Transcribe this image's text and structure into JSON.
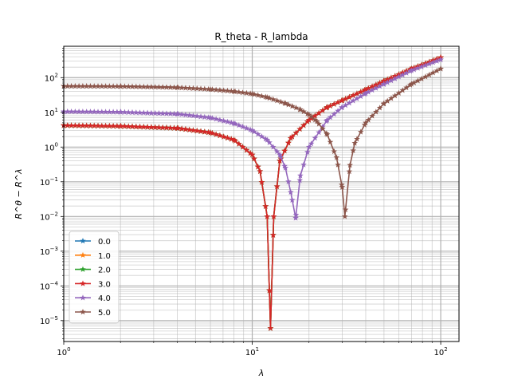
{
  "chart_data": {
    "type": "line",
    "title": "R_theta - R_lambda",
    "xlabel": "λ",
    "ylabel": "R^θ − R^λ",
    "xscale": "log",
    "yscale": "log",
    "xlim": [
      1,
      125
    ],
    "ylim": [
      2.5e-06,
      800
    ],
    "x_ticks": [
      {
        "value": 1,
        "base": "10",
        "exp": "0"
      },
      {
        "value": 10,
        "base": "10",
        "exp": "1"
      },
      {
        "value": 100,
        "base": "10",
        "exp": "2"
      }
    ],
    "y_ticks": [
      {
        "value": 1e-05,
        "base": "10",
        "exp": "−5"
      },
      {
        "value": 0.0001,
        "base": "10",
        "exp": "−4"
      },
      {
        "value": 0.001,
        "base": "10",
        "exp": "−3"
      },
      {
        "value": 0.01,
        "base": "10",
        "exp": "−2"
      },
      {
        "value": 0.1,
        "base": "10",
        "exp": "−1"
      },
      {
        "value": 1,
        "base": "10",
        "exp": "0"
      },
      {
        "value": 10,
        "base": "10",
        "exp": "1"
      },
      {
        "value": 100,
        "base": "10",
        "exp": "2"
      }
    ],
    "grid": true,
    "legend_position": "lower-left",
    "series": [
      {
        "name": "0.0",
        "color": "#1f77b4",
        "x": [
          1,
          2,
          4,
          6,
          8,
          10,
          11,
          12,
          12.5,
          13,
          14,
          16,
          20,
          25,
          30,
          40,
          50,
          70,
          100
        ],
        "y": [
          4.2,
          4.0,
          3.5,
          2.6,
          1.6,
          0.6,
          0.2,
          0.01,
          6e-06,
          0.01,
          0.4,
          1.8,
          6,
          14,
          22,
          45,
          80,
          180,
          380
        ]
      },
      {
        "name": "1.0",
        "color": "#ff7f0e",
        "x": [
          1,
          2,
          4,
          6,
          8,
          10,
          11,
          12,
          12.5,
          13,
          14,
          16,
          20,
          25,
          30,
          40,
          50,
          70,
          100
        ],
        "y": [
          4.2,
          4.0,
          3.5,
          2.6,
          1.6,
          0.6,
          0.2,
          0.01,
          6e-06,
          0.01,
          0.4,
          1.8,
          6,
          14,
          22,
          45,
          80,
          180,
          380
        ]
      },
      {
        "name": "2.0",
        "color": "#2ca02c",
        "x": [
          1,
          2,
          4,
          6,
          8,
          10,
          11,
          12,
          12.5,
          13,
          14,
          16,
          20,
          25,
          30,
          40,
          50,
          70,
          100
        ],
        "y": [
          4.2,
          4.0,
          3.5,
          2.6,
          1.6,
          0.6,
          0.2,
          0.01,
          6e-06,
          0.01,
          0.4,
          1.8,
          6,
          14,
          22,
          45,
          80,
          180,
          380
        ]
      },
      {
        "name": "3.0",
        "color": "#d62728",
        "x": [
          1,
          2,
          4,
          6,
          8,
          10,
          11,
          12,
          12.5,
          13,
          14,
          16,
          20,
          25,
          30,
          40,
          50,
          70,
          100
        ],
        "y": [
          4.2,
          4.0,
          3.5,
          2.6,
          1.6,
          0.6,
          0.2,
          0.01,
          6e-06,
          0.01,
          0.4,
          1.8,
          6,
          14,
          22,
          45,
          80,
          180,
          380
        ]
      },
      {
        "name": "4.0",
        "color": "#9467bd",
        "x": [
          1,
          2,
          4,
          6,
          8,
          10,
          12,
          14,
          15,
          16,
          17,
          18,
          20,
          25,
          30,
          40,
          50,
          70,
          100
        ],
        "y": [
          10.5,
          10.2,
          9.0,
          7.0,
          4.8,
          3.0,
          1.6,
          0.6,
          0.25,
          0.05,
          0.009,
          0.15,
          1.0,
          6,
          14,
          35,
          65,
          160,
          330
        ]
      },
      {
        "name": "5.0",
        "color": "#8c564b",
        "x": [
          1,
          2,
          4,
          6,
          8,
          10,
          12,
          15,
          18,
          20,
          22,
          25,
          28,
          30,
          31,
          33,
          35,
          40,
          50,
          70,
          100
        ],
        "y": [
          57,
          56,
          52,
          46,
          40,
          34,
          27,
          18,
          12,
          8.5,
          5.5,
          2.3,
          0.5,
          0.07,
          0.01,
          0.3,
          1.3,
          5,
          18,
          65,
          180
        ]
      }
    ]
  }
}
